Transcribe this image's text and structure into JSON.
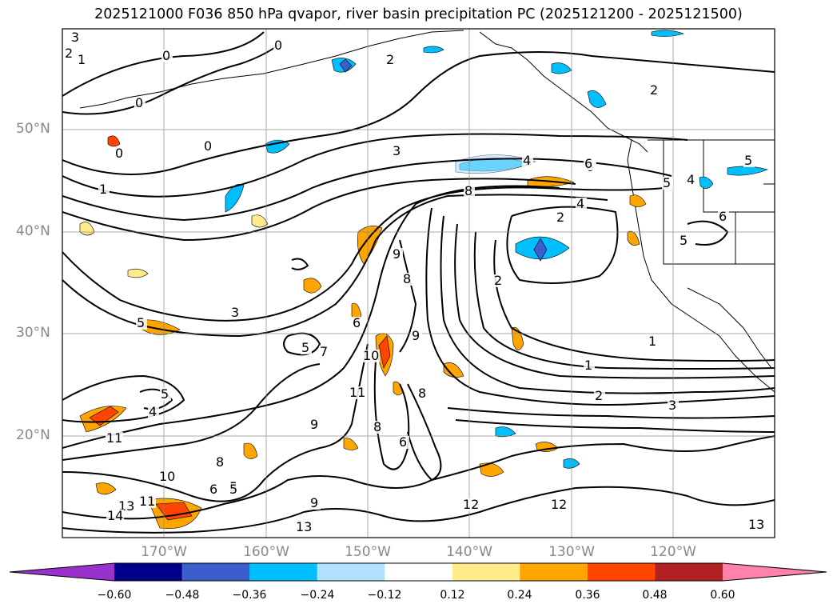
{
  "title": "2025121000 F036 850 hPa qvapor, river basin precipitation PC (2025121200 - 2025121500)",
  "lat_labels": [
    "50°N",
    "40°N",
    "30°N",
    "20°N"
  ],
  "lon_labels": [
    "170°W",
    "160°W",
    "150°W",
    "140°W",
    "130°W",
    "120°W"
  ],
  "colorbar": {
    "colors": [
      "#9932CC",
      "#00008B",
      "#3A5FCD",
      "#00BFFF",
      "#B0E2FF",
      "#FFFFFF",
      "#FFEC8B",
      "#FFA500",
      "#FF4500",
      "#B22222",
      "#FF82AB"
    ],
    "tick_labels": [
      "−0.60",
      "−0.48",
      "−0.36",
      "−0.24",
      "−0.12",
      "0.12",
      "0.24",
      "0.36",
      "0.48",
      "0.60"
    ]
  },
  "contour_labels": [
    "3",
    "2",
    "1",
    "0",
    "0",
    "0",
    "0",
    "0",
    "2",
    "2",
    "1",
    "3",
    "4",
    "6",
    "8",
    "4",
    "2",
    "2",
    "1",
    "9",
    "8",
    "9",
    "10",
    "11",
    "8",
    "9",
    "3",
    "5",
    "5",
    "6",
    "7",
    "4",
    "5",
    "11",
    "10",
    "11",
    "8",
    "6",
    "5",
    "12",
    "12",
    "13",
    "13",
    "14",
    "13",
    "2",
    "3",
    "1",
    "9",
    "5",
    "8",
    "6",
    "5",
    "6",
    "6",
    "5",
    "5",
    "4"
  ]
}
